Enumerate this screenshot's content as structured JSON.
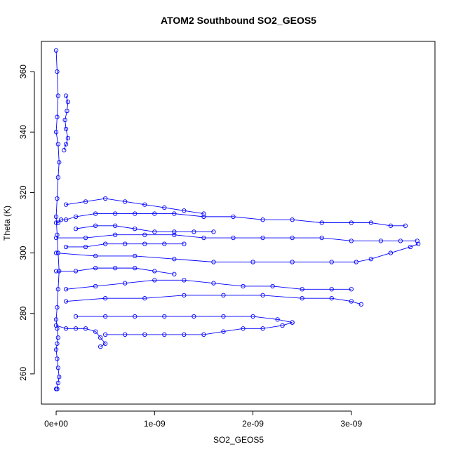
{
  "chart_data": {
    "type": "scatter",
    "title": "ATOM2 Southbound SO2_GEOS5",
    "xlabel": "SO2_GEOS5",
    "ylabel": "Theta (K)",
    "xlim": [
      -1.5e-10,
      3.85e-09
    ],
    "ylim": [
      250,
      370
    ],
    "x_ticks": [
      0,
      1e-09,
      2e-09,
      3e-09
    ],
    "x_tick_labels": [
      "0e+00",
      "1e-09",
      "2e-09",
      "3e-09"
    ],
    "y_ticks": [
      260,
      280,
      300,
      320,
      340,
      360
    ],
    "y_tick_labels": [
      "260",
      "280",
      "300",
      "320",
      "340",
      "360"
    ],
    "grid": false,
    "marker": "open-circle",
    "connected_by_line": true,
    "color": "#0000ff",
    "series": [
      {
        "x": [
          0.0,
          1e-11,
          2e-11,
          1e-11,
          0.0,
          2e-11,
          3e-11,
          2e-11,
          1e-11,
          0.0,
          1e-11,
          2e-11,
          3e-11,
          2e-11,
          1e-11,
          0.0,
          1e-11,
          2e-11,
          1e-11,
          0.0,
          1e-11,
          2e-11,
          3e-11,
          2e-11,
          1e-11,
          0.0
        ],
        "y": [
          367,
          360,
          352,
          345,
          340,
          336,
          330,
          325,
          318,
          312,
          306,
          300,
          294,
          288,
          282,
          278,
          275,
          272,
          270,
          268,
          265,
          262,
          259,
          257,
          255,
          255
        ]
      },
      {
        "x": [
          1e-10,
          1.2e-10,
          1.1e-10,
          9e-11,
          1e-10,
          1.2e-10,
          1e-10,
          8e-11
        ],
        "y": [
          352,
          350,
          347,
          344,
          341,
          338,
          336,
          334
        ]
      },
      {
        "x": [
          0.0,
          2e-11,
          5e-11,
          1e-10,
          2e-10,
          4e-10,
          6e-10,
          8e-10,
          1e-09,
          1.2e-09,
          1.5e-09,
          1.8e-09,
          2.1e-09,
          2.4e-09,
          2.7e-09,
          3e-09,
          3.2e-09,
          3.4e-09,
          3.55e-09
        ],
        "y": [
          310,
          310,
          311,
          311,
          312,
          313,
          313,
          313,
          313,
          313,
          312,
          312,
          311,
          311,
          310,
          310,
          310,
          309,
          309
        ]
      },
      {
        "x": [
          0.0,
          3e-10,
          6e-10,
          9e-10,
          1.2e-09,
          1.5e-09,
          1.8e-09,
          2.1e-09,
          2.4e-09,
          2.7e-09,
          3e-09,
          3.3e-09,
          3.5e-09,
          3.67e-09
        ],
        "y": [
          305,
          305,
          306,
          306,
          306,
          305,
          305,
          305,
          305,
          305,
          304,
          304,
          304,
          304
        ]
      },
      {
        "x": [
          0.0,
          4e-10,
          8e-10,
          1.2e-09,
          1.6e-09,
          2e-09,
          2.4e-09,
          2.8e-09,
          3.05e-09,
          3.2e-09,
          3.4e-09,
          3.6e-09,
          3.68e-09
        ],
        "y": [
          300,
          299,
          299,
          298,
          297,
          297,
          297,
          297,
          297,
          298,
          300,
          302,
          303
        ]
      },
      {
        "x": [
          1e-10,
          4e-10,
          7e-10,
          1e-09,
          1.3e-09,
          1.6e-09,
          1.9e-09,
          2.2e-09,
          2.5e-09,
          2.8e-09,
          3e-09
        ],
        "y": [
          288,
          289,
          290,
          291,
          291,
          290,
          289,
          289,
          288,
          288,
          288
        ]
      },
      {
        "x": [
          1e-10,
          5e-10,
          9e-10,
          1.3e-09,
          1.7e-09,
          2.1e-09,
          2.5e-09,
          2.8e-09,
          3e-09,
          3.1e-09
        ],
        "y": [
          284,
          285,
          285,
          286,
          286,
          286,
          285,
          285,
          284,
          283
        ]
      },
      {
        "x": [
          2e-10,
          5e-10,
          8e-10,
          1.1e-09,
          1.4e-09,
          1.7e-09,
          2e-09,
          2.25e-09,
          2.4e-09
        ],
        "y": [
          279,
          279,
          279,
          279,
          279,
          279,
          279,
          278,
          277
        ]
      },
      {
        "x": [
          5e-10,
          7e-10,
          9e-10,
          1.1e-09,
          1.3e-09,
          1.5e-09,
          1.7e-09,
          1.9e-09,
          2.1e-09,
          2.3e-09,
          2.4e-09
        ],
        "y": [
          273,
          273,
          273,
          273,
          273,
          273,
          274,
          275,
          275,
          276,
          277
        ]
      },
      {
        "x": [
          0.0,
          1e-10,
          2e-10,
          3e-10,
          4e-10,
          4.5e-10,
          5e-10,
          4.5e-10
        ],
        "y": [
          276,
          275,
          275,
          275,
          274,
          272,
          270,
          269
        ]
      },
      {
        "x": [
          1e-10,
          3e-10,
          5e-10,
          7e-10,
          9e-10,
          1.1e-09,
          1.3e-09,
          1.5e-09
        ],
        "y": [
          316,
          317,
          318,
          317,
          316,
          315,
          314,
          313
        ]
      },
      {
        "x": [
          2e-10,
          4e-10,
          6e-10,
          8e-10,
          1e-09,
          1.2e-09,
          1.4e-09,
          1.6e-09
        ],
        "y": [
          308,
          309,
          309,
          308,
          307,
          307,
          307,
          307
        ]
      },
      {
        "x": [
          1e-10,
          3e-10,
          5e-10,
          7e-10,
          9e-10,
          1.1e-09,
          1.3e-09
        ],
        "y": [
          302,
          302,
          303,
          303,
          303,
          303,
          303
        ]
      },
      {
        "x": [
          0.0,
          2e-10,
          4e-10,
          6e-10,
          8e-10,
          1e-09,
          1.2e-09
        ],
        "y": [
          294,
          294,
          295,
          295,
          295,
          294,
          293
        ]
      }
    ]
  }
}
